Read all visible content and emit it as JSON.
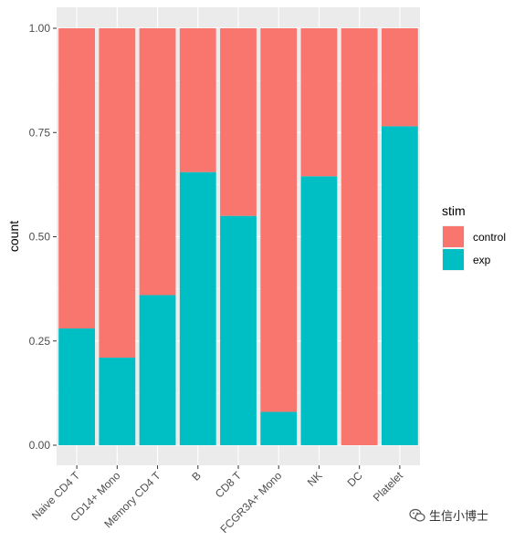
{
  "chart_data": {
    "type": "bar",
    "stacked": true,
    "position": "fill",
    "categories": [
      "Naive CD4 T",
      "CD14+ Mono",
      "Memory CD4 T",
      "B",
      "CD8 T",
      "FCGR3A+ Mono",
      "NK",
      "DC",
      "Platelet"
    ],
    "series": [
      {
        "name": "control",
        "color": "#F8766D",
        "values": [
          0.72,
          0.79,
          0.64,
          0.345,
          0.45,
          0.92,
          0.355,
          1.0,
          0.235
        ]
      },
      {
        "name": "exp",
        "color": "#00BFC4",
        "values": [
          0.28,
          0.21,
          0.36,
          0.655,
          0.55,
          0.08,
          0.645,
          0.0,
          0.765
        ]
      }
    ],
    "ylabel": "count",
    "xlabel": "",
    "ylim": [
      0,
      1
    ],
    "yticks": [
      "0.00",
      "0.25",
      "0.50",
      "0.75",
      "1.00"
    ],
    "yticks_values": [
      0,
      0.25,
      0.5,
      0.75,
      1.0
    ],
    "grid": true,
    "legend": {
      "title": "stim",
      "placement": "right",
      "entries": [
        "control",
        "exp"
      ]
    },
    "panel_color": "#EBEBEB"
  },
  "watermark": {
    "text": "生信小博士",
    "icon": "wechat-icon"
  }
}
